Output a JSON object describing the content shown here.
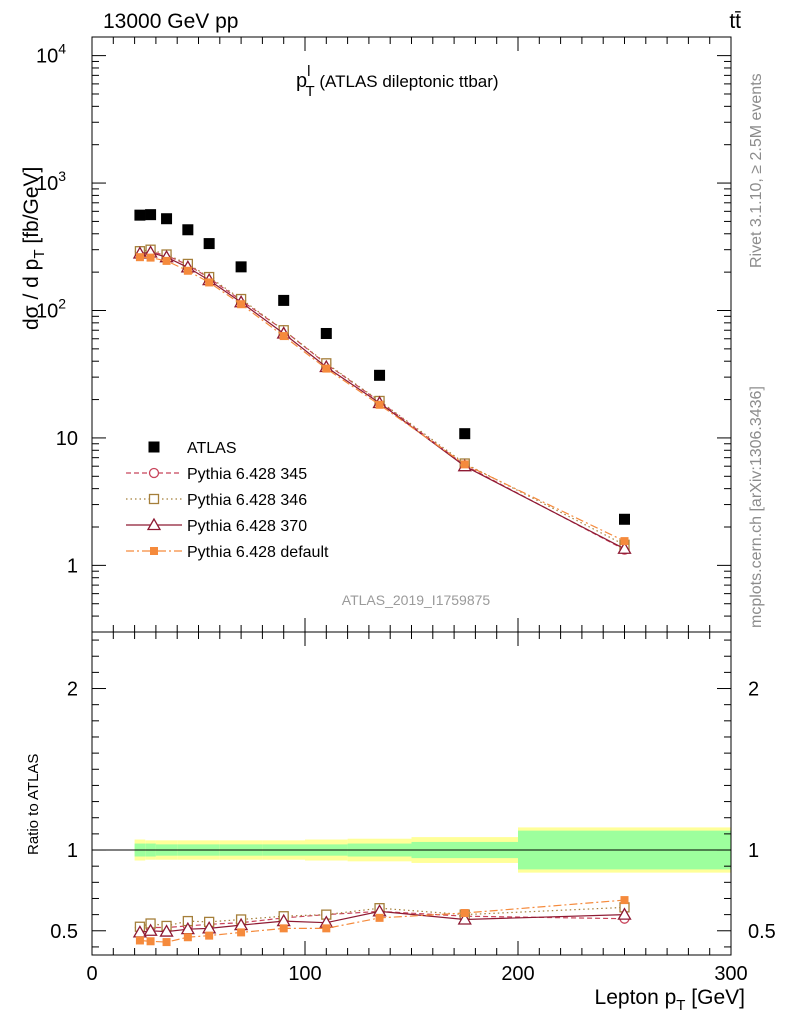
{
  "chart_data": {
    "type": "scatter",
    "header": {
      "left": "13000 GeV pp",
      "right": "tt̄"
    },
    "title": {
      "main": "p",
      "sup": "l",
      "sub": "T",
      "rest": " (ATLAS dileptonic ttbar)"
    },
    "ylabel": {
      "pre": "dσ / d p",
      "sub": "T",
      "post": " [fb/GeV]"
    },
    "xlabel": {
      "pre": "Lepton p",
      "sub": "T",
      "post": " [GeV]"
    },
    "ratio_ylabel": "Ratio to ATLAS",
    "analysis_id": "ATLAS_2019_I1759875",
    "side_texts": {
      "rivet": "Rivet 3.1.10, ≥ 2.5M events",
      "mcplots": "mcplots.cern.ch [arXiv:1306.3436]"
    },
    "xlim": [
      0,
      300
    ],
    "ylim_main": [
      0.3,
      14000
    ],
    "ylim_ratio": [
      0.35,
      2.35
    ],
    "main_y_ticks": [
      {
        "v": 1,
        "label": "1"
      },
      {
        "v": 10,
        "label": "10"
      },
      {
        "v": 100,
        "label": "10",
        "exp": "2"
      },
      {
        "v": 1000,
        "label": "10",
        "exp": "3"
      },
      {
        "v": 10000,
        "label": "10",
        "exp": "4"
      }
    ],
    "ratio_y_ticks": [
      {
        "v": 0.5,
        "label": "0.5"
      },
      {
        "v": 1,
        "label": "1"
      },
      {
        "v": 2,
        "label": "2"
      }
    ],
    "x_ticks": [
      {
        "v": 0,
        "label": "0"
      },
      {
        "v": 100,
        "label": "100"
      },
      {
        "v": 200,
        "label": "200"
      },
      {
        "v": 300,
        "label": "300"
      }
    ],
    "bins": [
      [
        20,
        25
      ],
      [
        25,
        30
      ],
      [
        30,
        40
      ],
      [
        40,
        50
      ],
      [
        50,
        60
      ],
      [
        60,
        80
      ],
      [
        80,
        100
      ],
      [
        100,
        120
      ],
      [
        120,
        150
      ],
      [
        150,
        200
      ],
      [
        200,
        300
      ]
    ],
    "x": [
      22.5,
      27.5,
      35,
      45,
      55,
      70,
      90,
      110,
      135,
      175,
      250
    ],
    "data": {
      "name": "ATLAS",
      "values": [
        560,
        565,
        525,
        430,
        335,
        220,
        120,
        66,
        31,
        10.8,
        2.3
      ],
      "band_inner": [
        0.04,
        0.04,
        0.035,
        0.035,
        0.035,
        0.035,
        0.035,
        0.035,
        0.04,
        0.05,
        0.12
      ],
      "band_outer": [
        0.065,
        0.06,
        0.06,
        0.06,
        0.06,
        0.06,
        0.06,
        0.065,
        0.07,
        0.08,
        0.14
      ]
    },
    "series": [
      {
        "name": "Pythia 6.428 345",
        "color": "#c8445b",
        "marker": "open-circle",
        "dash": "5,3",
        "values": [
          292,
          290,
          270,
          228,
          180,
          120,
          70,
          38,
          19.3,
          6.1,
          1.33
        ],
        "ratio": [
          0.52,
          0.52,
          0.52,
          0.53,
          0.54,
          0.55,
          0.58,
          0.6,
          0.62,
          0.59,
          0.575
        ]
      },
      {
        "name": "Pythia 6.428 346",
        "color": "#a57f3a",
        "marker": "open-square",
        "dash": "1.5,3",
        "values": [
          292,
          300,
          275,
          232,
          183,
          123,
          70,
          38.5,
          19.5,
          6.3,
          1.45
        ],
        "ratio": [
          0.525,
          0.545,
          0.53,
          0.56,
          0.555,
          0.57,
          0.59,
          0.6,
          0.64,
          0.6,
          0.645
        ]
      },
      {
        "name": "Pythia 6.428 370",
        "color": "#8e1a33",
        "marker": "open-triangle",
        "dash": "",
        "values": [
          280,
          285,
          262,
          218,
          173,
          116,
          66,
          36,
          18.8,
          6.0,
          1.35
        ],
        "ratio": [
          0.49,
          0.5,
          0.495,
          0.51,
          0.515,
          0.535,
          0.56,
          0.55,
          0.62,
          0.57,
          0.6
        ]
      },
      {
        "name": "Pythia 6.428 default",
        "color": "#f58a3c",
        "marker": "filled-square",
        "dash": "8,3,2,3",
        "values": [
          262,
          260,
          245,
          205,
          166,
          112,
          63,
          35,
          18.2,
          6.2,
          1.55
        ],
        "ratio": [
          0.44,
          0.435,
          0.43,
          0.46,
          0.47,
          0.49,
          0.515,
          0.515,
          0.58,
          0.61,
          0.69
        ]
      }
    ]
  }
}
